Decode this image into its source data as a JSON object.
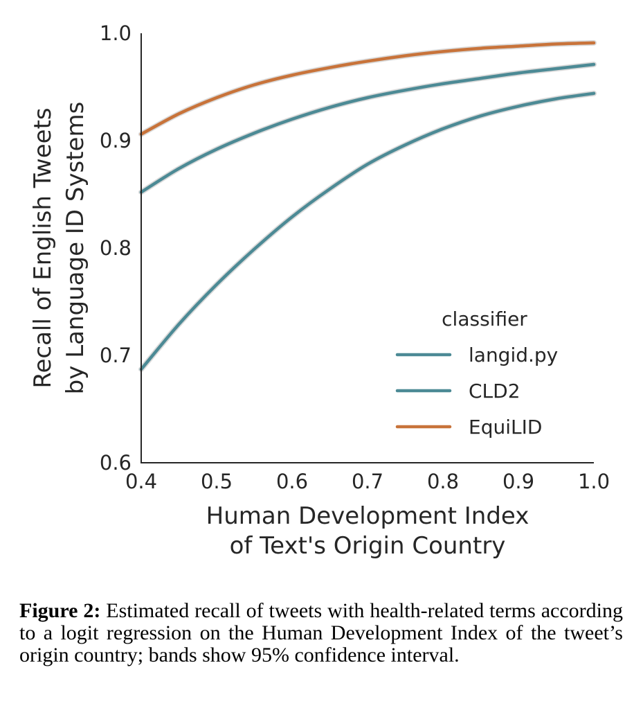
{
  "chart_data": {
    "type": "line",
    "xlabel": [
      "Human Development Index",
      "of Text's Origin Country"
    ],
    "ylabel": [
      "Recall of English Tweets",
      "by Language ID Systems"
    ],
    "xlim": [
      0.4,
      1.0
    ],
    "ylim": [
      0.6,
      1.0
    ],
    "xticks": [
      "0.4",
      "0.5",
      "0.6",
      "0.7",
      "0.8",
      "0.9",
      "1.0"
    ],
    "yticks": [
      "0.6",
      "0.7",
      "0.8",
      "0.9",
      "1.0"
    ],
    "grid": false,
    "legend": {
      "title": "classifier",
      "position": "lower-right",
      "entries": [
        "langid.py",
        "CLD2",
        "EquiLID"
      ]
    },
    "x": [
      0.4,
      0.45,
      0.5,
      0.55,
      0.6,
      0.65,
      0.7,
      0.75,
      0.8,
      0.85,
      0.9,
      0.95,
      1.0
    ],
    "series": [
      {
        "name": "langid.py",
        "color": "#4c8a95",
        "values": [
          0.687,
          0.729,
          0.766,
          0.799,
          0.829,
          0.855,
          0.878,
          0.896,
          0.911,
          0.923,
          0.932,
          0.939,
          0.944
        ]
      },
      {
        "name": "CLD2",
        "color": "#4c8a95",
        "values": [
          0.852,
          0.874,
          0.892,
          0.907,
          0.92,
          0.931,
          0.94,
          0.947,
          0.953,
          0.958,
          0.963,
          0.967,
          0.971
        ]
      },
      {
        "name": "EquiLID",
        "color": "#c8733a",
        "values": [
          0.906,
          0.925,
          0.94,
          0.952,
          0.961,
          0.968,
          0.974,
          0.979,
          0.983,
          0.986,
          0.988,
          0.99,
          0.991
        ]
      }
    ]
  },
  "caption": {
    "label": "Figure 2:",
    "text": " Estimated recall of tweets with health-related terms according to a logit regression on the Human Development Index of the tweet’s origin country; bands show 95% confidence interval."
  }
}
